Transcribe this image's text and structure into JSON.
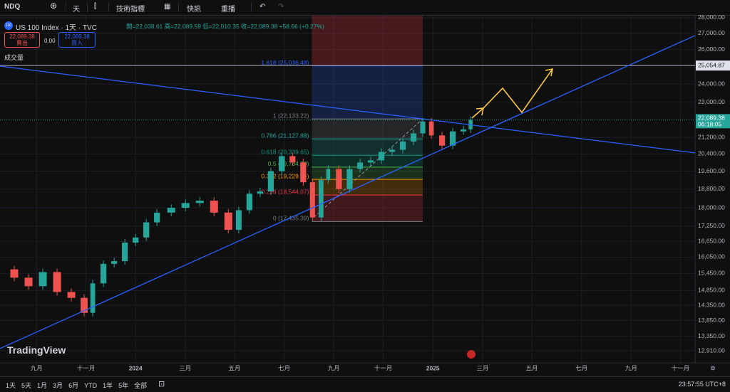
{
  "toolbar": {
    "symbol": "NDQ",
    "interval": "天",
    "indicators": "技術指標",
    "alerts": "快訊",
    "replay": "重播"
  },
  "symbol_bar": {
    "name": "US 100 Index · 1天 · TVC",
    "ohlc": "開=22,038.61 高=22,089.59 低=22,010.35 收=22,089.38 +58.66 (+0.27%)",
    "sell_price": "22,089.38",
    "sell_label": "賣出",
    "spread": "0.00",
    "buy_price": "22,089.38",
    "buy_label": "買入",
    "volume": "成交量"
  },
  "watermark": "TradingView",
  "bottom_bar": {
    "ranges": [
      "1天",
      "5天",
      "1月",
      "3月",
      "6月",
      "YTD",
      "1年",
      "5年",
      "全部"
    ],
    "time": "23:57:55 UTC+8"
  },
  "chart_data": {
    "type": "candlestick",
    "log": true,
    "grid": true,
    "up_color": "#26a69a",
    "down_color": "#ef5350",
    "x": [
      2023.544,
      2023.592,
      2023.64,
      2023.688,
      2023.736,
      2023.784,
      2023.827,
      2023.856,
      2023.892,
      2023.928,
      2023.964,
      2024.0,
      2024.036,
      2024.072,
      2024.12,
      2024.168,
      2024.216,
      2024.264,
      2024.312,
      2024.347,
      2024.383,
      2024.419,
      2024.455,
      2024.492,
      2024.528,
      2024.564,
      2024.595,
      2024.624,
      2024.648,
      2024.684,
      2024.72,
      2024.755,
      2024.791,
      2024.827,
      2024.863,
      2024.899,
      2024.935,
      2024.966,
      2024.995,
      2025.031,
      2025.067,
      2025.103,
      2025.127
    ],
    "values": [
      15600,
      15300,
      15000,
      15500,
      14800,
      14600,
      14100,
      15100,
      15800,
      15900,
      16600,
      16800,
      17400,
      17800,
      18000,
      18200,
      18300,
      17800,
      17100,
      17900,
      18600,
      18700,
      19600,
      20300,
      20000,
      19100,
      17600,
      19200,
      19700,
      18800,
      19700,
      20000,
      20100,
      20500,
      20600,
      21000,
      21400,
      22000,
      21300,
      20800,
      21500,
      21600,
      22089.38
    ],
    "xlim": [
      2023.544,
      2025.882
    ],
    "ylim": [
      12552,
      28139
    ],
    "xticks": [
      {
        "value": 2023.667,
        "label": "九月"
      },
      {
        "value": 2023.833,
        "label": "十一月"
      },
      2024,
      {
        "value": 2024.167,
        "label": "三月"
      },
      {
        "value": 2024.333,
        "label": "五月"
      },
      {
        "value": 2024.5,
        "label": "七月"
      },
      {
        "value": 2024.667,
        "label": "九月"
      },
      {
        "value": 2024.833,
        "label": "十一月"
      },
      2025,
      {
        "value": 2025.167,
        "label": "三月"
      },
      {
        "value": 2025.333,
        "label": "五月"
      },
      {
        "value": 2025.5,
        "label": "七月"
      },
      {
        "value": 2025.667,
        "label": "九月"
      },
      {
        "value": 2025.833,
        "label": "十一月"
      }
    ],
    "yticks": [
      {
        "value": 28000,
        "label": "28,000.00"
      },
      {
        "value": 27000,
        "label": "27,000.00"
      },
      {
        "value": 26000,
        "label": "26,000.00"
      },
      {
        "value": 24000,
        "label": "24,000.00"
      },
      {
        "value": 23000,
        "label": "23,000.00"
      },
      {
        "value": 21200,
        "label": "21,200.00"
      },
      {
        "value": 20400,
        "label": "20,400.00"
      },
      {
        "value": 19600,
        "label": "19,600.00"
      },
      {
        "value": 18800,
        "label": "18,800.00"
      },
      {
        "value": 18000,
        "label": "18,000.00"
      },
      {
        "value": 17250,
        "label": "17,250.00"
      },
      {
        "value": 16650,
        "label": "16,650.00"
      },
      {
        "value": 16050,
        "label": "16,050.00"
      },
      {
        "value": 15450,
        "label": "15,450.00"
      },
      {
        "value": 14850,
        "label": "14,850.00"
      },
      {
        "value": 14350,
        "label": "14,350.00"
      },
      {
        "value": 13850,
        "label": "13,850.00"
      },
      {
        "value": 13350,
        "label": "13,350.00"
      },
      {
        "value": 12910,
        "label": "12,910.00"
      }
    ],
    "hline": {
      "value": 25054.87,
      "label": "25,054.87"
    },
    "last_price": {
      "value": 22089.38,
      "label": "22,089.38",
      "countdown": "06:18:05",
      "color": "#26a69a"
    },
    "trendlines": [
      {
        "x": [
          2023.544,
          2025.882
        ],
        "values": [
          25022,
          20452
        ],
        "color": "#2962ff"
      },
      {
        "x": [
          2023.544,
          2025.882
        ],
        "values": [
          12976,
          26867
        ],
        "color": "#2962ff"
      }
    ],
    "fib": {
      "x": [
        2024.593,
        2024.966
      ],
      "levels": [
        {
          "value": 25036.48,
          "label": "1.618 (25,036.48)",
          "color": "#2962ff"
        },
        {
          "value": 22133.22,
          "label": "1 (22,133.22)",
          "color": "#787b86"
        },
        {
          "value": 21127.88,
          "label": "0.786 (21,127.88)",
          "color": "#26a69a"
        },
        {
          "value": 20339.65,
          "label": "0.618 (20,339.65)",
          "color": "#089981"
        },
        {
          "value": 19784.8,
          "label": "0.5 (19,784.80)",
          "color": "#4caf50"
        },
        {
          "value": 19229.94,
          "label": "0.382 (19,229.94)",
          "color": "#ff9800"
        },
        {
          "value": 18544.07,
          "label": "0.236 (18,544.07)",
          "color": "#f23645"
        },
        {
          "value": 17435.39,
          "label": "0 (17,435.39)",
          "color": "#787b86"
        }
      ]
    }
  }
}
